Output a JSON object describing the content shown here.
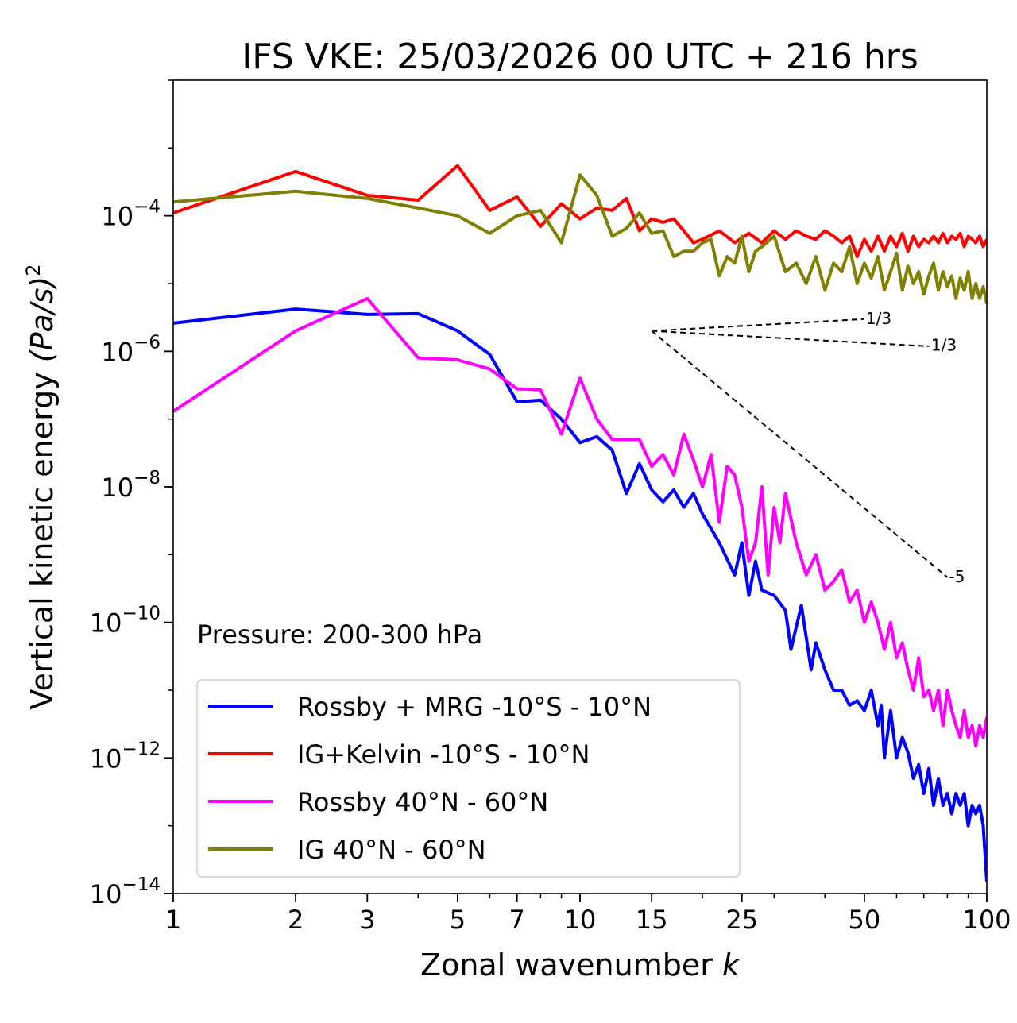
{
  "chart_data": {
    "type": "line",
    "title": "IFS VKE: 25/03/2026 00 UTC + 216 hrs",
    "xlabel": "Zonal wavenumber",
    "xlabel_var": "k",
    "ylabel": "Vertical kinetic energy",
    "ylabel_units": "(Pa/s)",
    "ylabel_exp": "2",
    "xscale": "log",
    "yscale": "log",
    "xlim": [
      1,
      100
    ],
    "ylim": [
      1e-14,
      0.01
    ],
    "x_ticks": [
      {
        "value": 1,
        "label": "1"
      },
      {
        "value": 2,
        "label": "2"
      },
      {
        "value": 3,
        "label": "3"
      },
      {
        "value": 5,
        "label": "5"
      },
      {
        "value": 7,
        "label": "7"
      },
      {
        "value": 10,
        "label": "10"
      },
      {
        "value": 15,
        "label": "15"
      },
      {
        "value": 25,
        "label": "25"
      },
      {
        "value": 50,
        "label": "50"
      },
      {
        "value": 100,
        "label": "100"
      }
    ],
    "y_ticks": [
      {
        "value": 0.0001,
        "base": "10",
        "exp": "−4"
      },
      {
        "value": 1e-06,
        "base": "10",
        "exp": "−6"
      },
      {
        "value": 1e-08,
        "base": "10",
        "exp": "−8"
      },
      {
        "value": 1e-10,
        "base": "10",
        "exp": "−10"
      },
      {
        "value": 1e-12,
        "base": "10",
        "exp": "−12"
      },
      {
        "value": 1e-14,
        "base": "10",
        "exp": "−14"
      }
    ],
    "annotation": "Pressure: 200-300 hPa",
    "legend_position": "lower-left",
    "reference_lines": [
      {
        "label": "1/3",
        "slope": 0.3333,
        "x0": 15,
        "y0": 2e-06,
        "x1": 50,
        "color": "#000000"
      },
      {
        "label": "-1/3",
        "slope": -0.3333,
        "x0": 15,
        "y0": 2e-06,
        "x1": 70,
        "color": "#000000"
      },
      {
        "label": "-5",
        "slope": -5,
        "x0": 15,
        "y0": 2e-06,
        "x1": 80,
        "color": "#000000"
      }
    ],
    "series": [
      {
        "name": "Rossby + MRG -10°S - 10°N",
        "color": "#0000ff",
        "points": [
          [
            1,
            2.6e-06
          ],
          [
            2,
            4.2e-06
          ],
          [
            3,
            3.5e-06
          ],
          [
            4,
            3.6e-06
          ],
          [
            5,
            2e-06
          ],
          [
            6,
            9e-07
          ],
          [
            7,
            1.8e-07
          ],
          [
            8,
            1.9e-07
          ],
          [
            9,
            1e-07
          ],
          [
            10,
            4.5e-08
          ],
          [
            11,
            5.5e-08
          ],
          [
            12,
            3.5e-08
          ],
          [
            13,
            8e-09
          ],
          [
            14,
            2.2e-08
          ],
          [
            15,
            9e-09
          ],
          [
            16,
            6e-09
          ],
          [
            17,
            9e-09
          ],
          [
            18,
            5e-09
          ],
          [
            19,
            8e-09
          ],
          [
            20,
            4e-09
          ],
          [
            22,
            1.5e-09
          ],
          [
            24,
            5e-10
          ],
          [
            25,
            1.5e-09
          ],
          [
            26,
            2.5e-10
          ],
          [
            27,
            8e-10
          ],
          [
            28,
            3e-10
          ],
          [
            30,
            2.5e-10
          ],
          [
            32,
            1.5e-10
          ],
          [
            33,
            4e-11
          ],
          [
            35,
            1.8e-10
          ],
          [
            37,
            2e-11
          ],
          [
            38,
            5e-11
          ],
          [
            40,
            2e-11
          ],
          [
            42,
            1e-11
          ],
          [
            44,
            1e-11
          ],
          [
            46,
            6e-12
          ],
          [
            48,
            7e-12
          ],
          [
            50,
            5e-12
          ],
          [
            52,
            1e-11
          ],
          [
            54,
            3e-12
          ],
          [
            55,
            6e-12
          ],
          [
            56,
            1e-12
          ],
          [
            58,
            5e-12
          ],
          [
            60,
            1e-12
          ],
          [
            62,
            2e-12
          ],
          [
            64,
            1.2e-12
          ],
          [
            66,
            5e-13
          ],
          [
            68,
            8e-13
          ],
          [
            70,
            3e-13
          ],
          [
            72,
            7e-13
          ],
          [
            74,
            2e-13
          ],
          [
            76,
            5e-13
          ],
          [
            78,
            2e-13
          ],
          [
            80,
            3e-13
          ],
          [
            82,
            1.5e-13
          ],
          [
            84,
            3e-13
          ],
          [
            86,
            2e-13
          ],
          [
            88,
            3e-13
          ],
          [
            90,
            1e-13
          ],
          [
            92,
            2e-13
          ],
          [
            94,
            1.5e-13
          ],
          [
            96,
            2e-13
          ],
          [
            98,
            1e-13
          ],
          [
            100,
            1.5e-14
          ]
        ]
      },
      {
        "name": "IG+Kelvin -10°S - 10°N",
        "color": "#ff0000",
        "points": [
          [
            1,
            0.00011
          ],
          [
            2,
            0.00045
          ],
          [
            3,
            0.0002
          ],
          [
            4,
            0.00017
          ],
          [
            5,
            0.00055
          ],
          [
            6,
            0.00012
          ],
          [
            7,
            0.00019
          ],
          [
            8,
            7e-05
          ],
          [
            9,
            0.00015
          ],
          [
            10,
            9e-05
          ],
          [
            11,
            0.00013
          ],
          [
            12,
            0.00012
          ],
          [
            13,
            0.00018
          ],
          [
            14,
            6e-05
          ],
          [
            15,
            9e-05
          ],
          [
            16,
            8e-05
          ],
          [
            17,
            9e-05
          ],
          [
            18,
            6e-05
          ],
          [
            19,
            4e-05
          ],
          [
            20,
            4.5e-05
          ],
          [
            22,
            6e-05
          ],
          [
            24,
            4e-05
          ],
          [
            26,
            5.5e-05
          ],
          [
            28,
            4e-05
          ],
          [
            30,
            6e-05
          ],
          [
            32,
            4.5e-05
          ],
          [
            34,
            6e-05
          ],
          [
            36,
            5e-05
          ],
          [
            38,
            4.5e-05
          ],
          [
            40,
            6e-05
          ],
          [
            42,
            5e-05
          ],
          [
            44,
            4e-05
          ],
          [
            46,
            5e-05
          ],
          [
            48,
            2.5e-05
          ],
          [
            50,
            4.5e-05
          ],
          [
            52,
            3e-05
          ],
          [
            54,
            5e-05
          ],
          [
            56,
            3e-05
          ],
          [
            58,
            5e-05
          ],
          [
            60,
            3.5e-05
          ],
          [
            62,
            5.5e-05
          ],
          [
            64,
            3e-05
          ],
          [
            66,
            5e-05
          ],
          [
            68,
            3.5e-05
          ],
          [
            70,
            4.5e-05
          ],
          [
            72,
            4e-05
          ],
          [
            74,
            5e-05
          ],
          [
            76,
            4e-05
          ],
          [
            78,
            5.5e-05
          ],
          [
            80,
            4e-05
          ],
          [
            82,
            5e-05
          ],
          [
            84,
            4.5e-05
          ],
          [
            86,
            5.5e-05
          ],
          [
            88,
            3.5e-05
          ],
          [
            90,
            5e-05
          ],
          [
            92,
            4.5e-05
          ],
          [
            94,
            4e-05
          ],
          [
            96,
            5e-05
          ],
          [
            98,
            3.5e-05
          ],
          [
            100,
            4.5e-05
          ]
        ]
      },
      {
        "name": "Rossby 40°N - 60°N",
        "color": "#ff00ff",
        "points": [
          [
            1,
            1.3e-07
          ],
          [
            2,
            2e-06
          ],
          [
            3,
            6e-06
          ],
          [
            4,
            8e-07
          ],
          [
            5,
            7.5e-07
          ],
          [
            6,
            5.5e-07
          ],
          [
            7,
            2.8e-07
          ],
          [
            8,
            2.7e-07
          ],
          [
            9,
            6e-08
          ],
          [
            10,
            4e-07
          ],
          [
            11,
            1e-07
          ],
          [
            12,
            5e-08
          ],
          [
            13,
            5e-08
          ],
          [
            14,
            5e-08
          ],
          [
            15,
            2e-08
          ],
          [
            16,
            3e-08
          ],
          [
            17,
            1.5e-08
          ],
          [
            18,
            6e-08
          ],
          [
            19,
            2.5e-08
          ],
          [
            20,
            1e-08
          ],
          [
            21,
            3e-08
          ],
          [
            22,
            3e-09
          ],
          [
            23,
            2e-08
          ],
          [
            24,
            1.5e-08
          ],
          [
            25,
            5e-09
          ],
          [
            26,
            8e-10
          ],
          [
            27,
            1.5e-09
          ],
          [
            28,
            1e-08
          ],
          [
            29,
            5e-10
          ],
          [
            30,
            5e-09
          ],
          [
            31,
            1.5e-09
          ],
          [
            32,
            8e-09
          ],
          [
            34,
            1.5e-09
          ],
          [
            36,
            5e-10
          ],
          [
            38,
            1e-09
          ],
          [
            40,
            3e-10
          ],
          [
            42,
            4e-10
          ],
          [
            44,
            6e-10
          ],
          [
            46,
            2e-10
          ],
          [
            48,
            3e-10
          ],
          [
            50,
            1e-10
          ],
          [
            52,
            2e-10
          ],
          [
            54,
            1e-10
          ],
          [
            56,
            4e-11
          ],
          [
            58,
            1e-10
          ],
          [
            60,
            3e-11
          ],
          [
            62,
            5e-11
          ],
          [
            64,
            2e-11
          ],
          [
            66,
            1e-11
          ],
          [
            68,
            3e-11
          ],
          [
            70,
            8e-12
          ],
          [
            72,
            1e-11
          ],
          [
            74,
            5e-12
          ],
          [
            76,
            1e-11
          ],
          [
            78,
            3e-12
          ],
          [
            80,
            1e-11
          ],
          [
            82,
            5e-12
          ],
          [
            84,
            3e-12
          ],
          [
            86,
            2e-12
          ],
          [
            88,
            5e-12
          ],
          [
            90,
            2e-12
          ],
          [
            92,
            3e-12
          ],
          [
            94,
            1.5e-12
          ],
          [
            96,
            3e-12
          ],
          [
            98,
            2e-12
          ],
          [
            100,
            4e-12
          ]
        ]
      },
      {
        "name": "IG 40°N - 60°N",
        "color": "#808000",
        "points": [
          [
            1,
            0.00016
          ],
          [
            2,
            0.00023
          ],
          [
            3,
            0.00018
          ],
          [
            4,
            0.00013
          ],
          [
            5,
            0.0001
          ],
          [
            6,
            5.5e-05
          ],
          [
            7,
            0.0001
          ],
          [
            8,
            0.00012
          ],
          [
            9,
            4e-05
          ],
          [
            10,
            0.0004
          ],
          [
            11,
            0.0002
          ],
          [
            12,
            5e-05
          ],
          [
            13,
            6.5e-05
          ],
          [
            14,
            0.00011
          ],
          [
            15,
            5.5e-05
          ],
          [
            16,
            6e-05
          ],
          [
            17,
            2.5e-05
          ],
          [
            18,
            3e-05
          ],
          [
            19,
            3e-05
          ],
          [
            20,
            4e-05
          ],
          [
            21,
            4.5e-05
          ],
          [
            22,
            1.3e-05
          ],
          [
            23,
            2.5e-05
          ],
          [
            24,
            2e-05
          ],
          [
            25,
            5e-05
          ],
          [
            26,
            1.5e-05
          ],
          [
            27,
            3e-05
          ],
          [
            28,
            3.5e-05
          ],
          [
            30,
            5e-05
          ],
          [
            32,
            1.5e-05
          ],
          [
            34,
            2e-05
          ],
          [
            36,
            1e-05
          ],
          [
            38,
            2.5e-05
          ],
          [
            40,
            8e-06
          ],
          [
            42,
            2e-05
          ],
          [
            44,
            1.5e-05
          ],
          [
            46,
            3.5e-05
          ],
          [
            48,
            1e-05
          ],
          [
            50,
            2e-05
          ],
          [
            52,
            1.2e-05
          ],
          [
            54,
            2.5e-05
          ],
          [
            56,
            8e-06
          ],
          [
            58,
            1.5e-05
          ],
          [
            60,
            2.8e-05
          ],
          [
            62,
            8e-06
          ],
          [
            64,
            1.8e-05
          ],
          [
            66,
            1e-05
          ],
          [
            68,
            1.5e-05
          ],
          [
            70,
            7e-06
          ],
          [
            72,
            1.3e-05
          ],
          [
            74,
            2e-05
          ],
          [
            76,
            8e-06
          ],
          [
            78,
            1.5e-05
          ],
          [
            80,
            9e-06
          ],
          [
            82,
            1.3e-05
          ],
          [
            84,
            6e-06
          ],
          [
            86,
            1.2e-05
          ],
          [
            88,
            8e-06
          ],
          [
            90,
            1.5e-05
          ],
          [
            92,
            6e-06
          ],
          [
            94,
            1e-05
          ],
          [
            96,
            6e-06
          ],
          [
            98,
            9e-06
          ],
          [
            100,
            5e-06
          ]
        ]
      }
    ]
  }
}
